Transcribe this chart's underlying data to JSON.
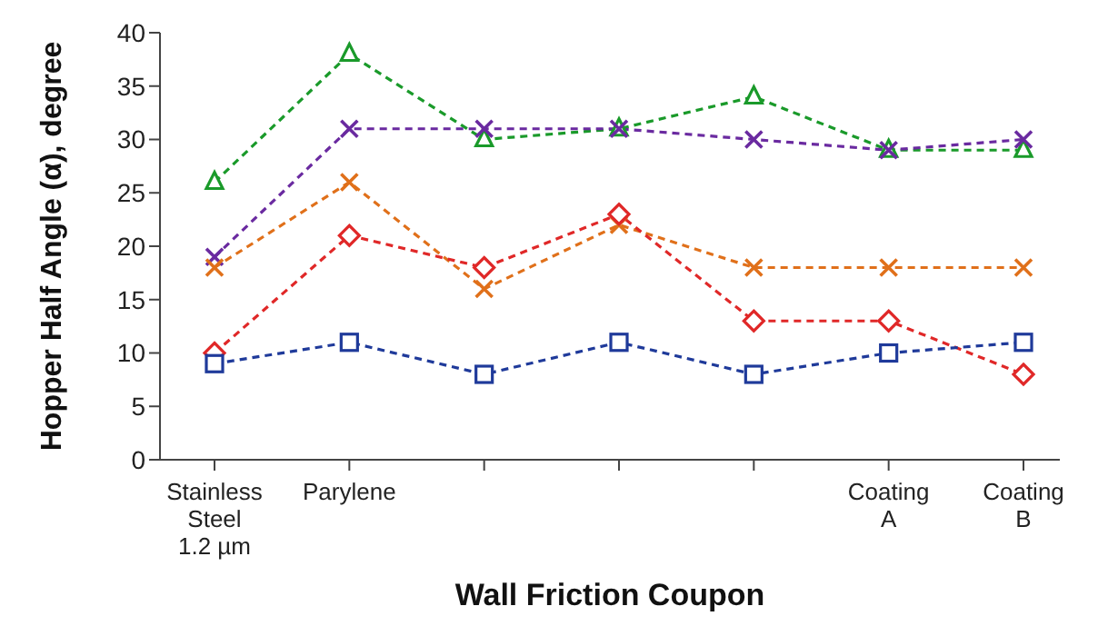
{
  "chart_data": {
    "type": "line",
    "xlabel": "Wall Friction Coupon",
    "ylabel": "Hopper Half Angle (α), degree",
    "categories": [
      "Stainless Steel 1.2 µm",
      "Parylene",
      null,
      null,
      null,
      "Coating A",
      "Coating B"
    ],
    "ylim": [
      0,
      40
    ],
    "yticks": [
      0,
      5,
      10,
      15,
      20,
      25,
      30,
      35,
      40
    ],
    "grid": false,
    "legend": false,
    "line_style": "dashed",
    "series": [
      {
        "color": "#1a9a2a",
        "marker": "triangle",
        "values": [
          26,
          38,
          30,
          31,
          34,
          29,
          29
        ]
      },
      {
        "color": "#6a2aa0",
        "marker": "cross",
        "values": [
          19,
          31,
          31,
          31,
          30,
          29,
          30
        ]
      },
      {
        "color": "#e0701a",
        "marker": "cross",
        "values": [
          18,
          26,
          16,
          22,
          18,
          18,
          18
        ]
      },
      {
        "color": "#e02828",
        "marker": "diamond",
        "values": [
          10,
          21,
          18,
          23,
          13,
          13,
          8
        ]
      },
      {
        "color": "#1f3a9a",
        "marker": "square",
        "values": [
          9,
          11,
          8,
          11,
          8,
          10,
          11
        ]
      }
    ]
  }
}
